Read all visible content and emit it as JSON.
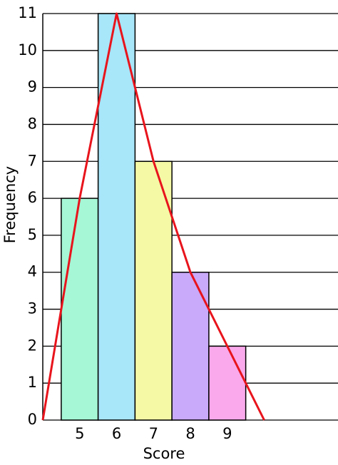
{
  "chart_data": {
    "type": "bar",
    "xlabel": "Score",
    "ylabel": "Frequency",
    "xlim": [
      4,
      12
    ],
    "ylim": [
      0,
      11
    ],
    "xticks": [
      5,
      6,
      7,
      8,
      9
    ],
    "yticks": [
      0,
      1,
      2,
      3,
      4,
      5,
      6,
      7,
      8,
      9,
      10,
      11
    ],
    "grid": true,
    "series": [
      {
        "type": "bar",
        "x": [
          5,
          6,
          7,
          8,
          9
        ],
        "values": [
          6,
          11,
          7,
          4,
          2
        ],
        "colors": [
          "#a6f7d6",
          "#a8e6fa",
          "#f5f9a6",
          "#c9a9f9",
          "#f9a9ec"
        ]
      },
      {
        "type": "line",
        "x": [
          4,
          5,
          6,
          7,
          8,
          9,
          10
        ],
        "values": [
          0,
          6,
          11,
          7,
          4,
          2,
          0
        ],
        "color": "#e8141c"
      }
    ]
  }
}
